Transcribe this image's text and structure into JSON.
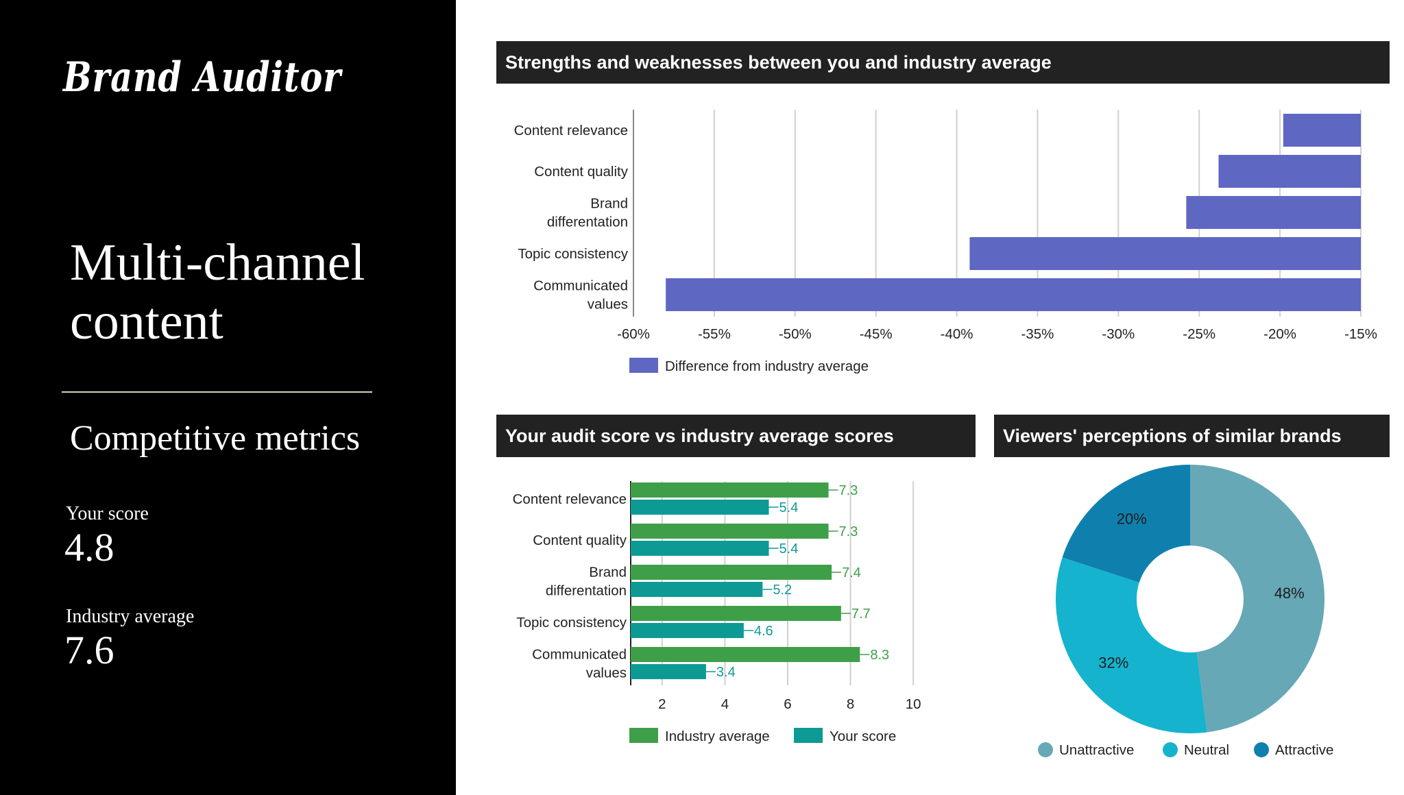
{
  "sidebar": {
    "brand": "Brand Auditor",
    "headline": "Multi-channel\ncontent",
    "subheading": "Competitive metrics",
    "your_score_label": "Your score",
    "your_score_value": "4.8",
    "industry_avg_label": "Industry average",
    "industry_avg_value": "7.6"
  },
  "panels": {
    "strengths_title": "Strengths and weaknesses between you and industry average",
    "audit_title": "Your audit score vs industry average scores",
    "perceptions_title": "Viewers' perceptions of similar brands"
  },
  "colors": {
    "diff_bar": "#5e67c2",
    "industry": "#3e9f48",
    "your": "#0d9a95",
    "unattractive": "#66a8b5",
    "neutral": "#16b3ce",
    "attractive": "#0f80ad"
  },
  "chart_data": [
    {
      "type": "bar",
      "orientation": "horizontal",
      "categories": [
        "Content relevance",
        "Content quality",
        "Brand differentation",
        "Topic consistency",
        "Communicated values"
      ],
      "category_lines": [
        [
          "Content relevance"
        ],
        [
          "Content quality"
        ],
        [
          "Brand",
          "differentation"
        ],
        [
          "Topic consistency"
        ],
        [
          "Communicated",
          "values"
        ]
      ],
      "series": [
        {
          "name": "Difference from industry average",
          "values": [
            -19.8,
            -23.8,
            -25.8,
            -39.2,
            -58.0
          ]
        }
      ],
      "xlim": [
        -60,
        -15
      ],
      "xticks": [
        -60,
        -55,
        -50,
        -45,
        -40,
        -35,
        -30,
        -25,
        -20,
        -15
      ],
      "tick_suffix": "%",
      "legend": "bottom-left",
      "grid": true
    },
    {
      "type": "bar",
      "orientation": "horizontal",
      "categories": [
        "Content relevance",
        "Content quality",
        "Brand differentation",
        "Topic consistency",
        "Communicated values"
      ],
      "category_lines": [
        [
          "Content relevance"
        ],
        [
          "Content quality"
        ],
        [
          "Brand",
          "differentation"
        ],
        [
          "Topic consistency"
        ],
        [
          "Communicated",
          "values"
        ]
      ],
      "series": [
        {
          "name": "Industry average",
          "values": [
            7.3,
            7.3,
            7.4,
            7.7,
            8.3
          ]
        },
        {
          "name": "Your score",
          "values": [
            5.4,
            5.4,
            5.2,
            4.6,
            3.4
          ]
        }
      ],
      "xlim": [
        1,
        11
      ],
      "xticks": [
        2,
        4,
        6,
        8,
        10
      ],
      "legend": "bottom",
      "grid": true,
      "data_labels": true
    },
    {
      "type": "pie",
      "donut": true,
      "slices": [
        {
          "name": "Unattractive",
          "value": 48,
          "label": "48%"
        },
        {
          "name": "Neutral",
          "value": 32,
          "label": "32%"
        },
        {
          "name": "Attractive",
          "value": 20,
          "label": "20%"
        }
      ],
      "legend": "bottom"
    }
  ]
}
